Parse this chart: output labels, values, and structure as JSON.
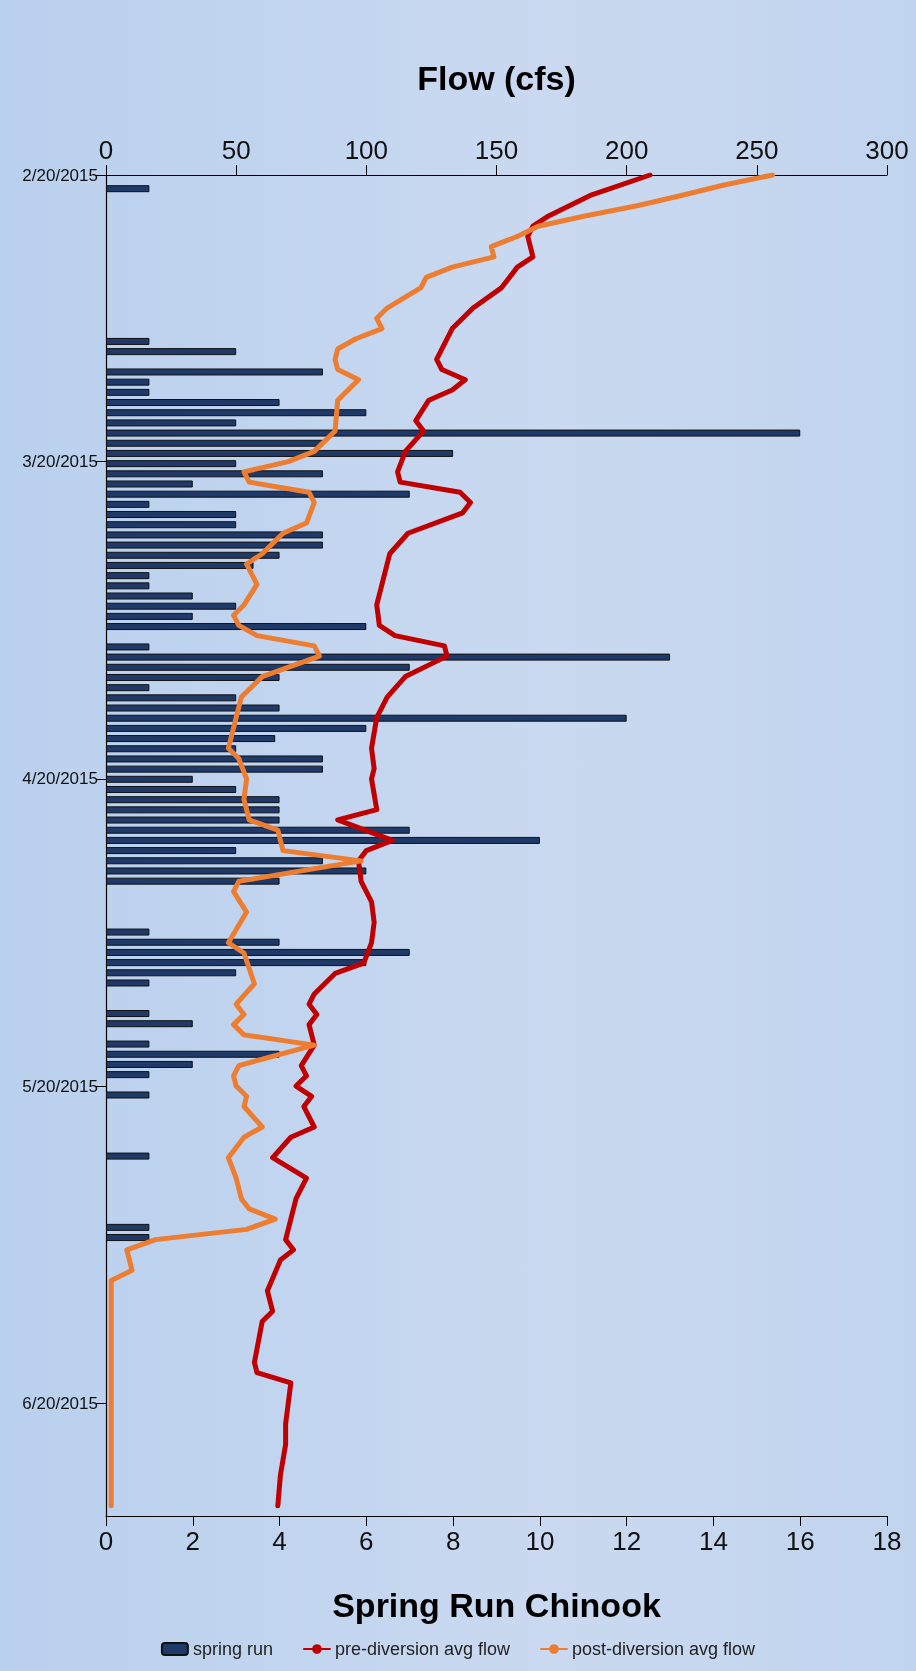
{
  "chart_data": {
    "type": "bar",
    "orientation": "horizontal",
    "xlabel": "Spring Run Chinook",
    "x2label": "Flow (cfs)",
    "xlim": [
      0,
      18
    ],
    "xticks": [
      0,
      2,
      4,
      6,
      8,
      10,
      12,
      14,
      16,
      18
    ],
    "x2lim": [
      0,
      300
    ],
    "x2ticks": [
      0,
      50,
      100,
      150,
      200,
      250,
      300
    ],
    "ylim": [
      "2015-07-01",
      "2015-02-20"
    ],
    "yticks": [
      {
        "value": "2015-02-20",
        "label": "2/20/2015"
      },
      {
        "value": "2015-03-20",
        "label": "3/20/2015"
      },
      {
        "value": "2015-04-20",
        "label": "4/20/2015"
      },
      {
        "value": "2015-05-20",
        "label": "5/20/2015"
      },
      {
        "value": "2015-06-20",
        "label": "6/20/2015"
      }
    ],
    "grid": false,
    "legend": "bottom",
    "marker": "none",
    "series": [
      {
        "name": "spring run",
        "color": "#1f3a68",
        "x": [
          "2015-02-21",
          "2015-03-08",
          "2015-03-09",
          "2015-03-11",
          "2015-03-12",
          "2015-03-13",
          "2015-03-14",
          "2015-03-15",
          "2015-03-16",
          "2015-03-17",
          "2015-03-18",
          "2015-03-19",
          "2015-03-20",
          "2015-03-21",
          "2015-03-22",
          "2015-03-23",
          "2015-03-24",
          "2015-03-25",
          "2015-03-26",
          "2015-03-27",
          "2015-03-28",
          "2015-03-29",
          "2015-03-30",
          "2015-03-31",
          "2015-04-01",
          "2015-04-02",
          "2015-04-03",
          "2015-04-04",
          "2015-04-05",
          "2015-04-07",
          "2015-04-08",
          "2015-04-09",
          "2015-04-10",
          "2015-04-11",
          "2015-04-12",
          "2015-04-13",
          "2015-04-14",
          "2015-04-15",
          "2015-04-16",
          "2015-04-17",
          "2015-04-18",
          "2015-04-19",
          "2015-04-20",
          "2015-04-21",
          "2015-04-22",
          "2015-04-23",
          "2015-04-24",
          "2015-04-25",
          "2015-04-26",
          "2015-04-27",
          "2015-04-28",
          "2015-04-29",
          "2015-04-30",
          "2015-05-05",
          "2015-05-06",
          "2015-05-07",
          "2015-05-08",
          "2015-05-09",
          "2015-05-10",
          "2015-05-13",
          "2015-05-14",
          "2015-05-16",
          "2015-05-17",
          "2015-05-18",
          "2015-05-19",
          "2015-05-21",
          "2015-05-27",
          "2015-06-03",
          "2015-06-04"
        ],
        "values": [
          1,
          1,
          3,
          5,
          1,
          1,
          4,
          6,
          3,
          16,
          5,
          8,
          3,
          5,
          2,
          7,
          1,
          3,
          3,
          5,
          5,
          4,
          3.4,
          1,
          1,
          2,
          3,
          2,
          6,
          1,
          13,
          7,
          4,
          1,
          3,
          4,
          12,
          6,
          3.9,
          3,
          5,
          5,
          2,
          3,
          4,
          4,
          4,
          7,
          10,
          3,
          5,
          6,
          4,
          1,
          4,
          7,
          6,
          3,
          1,
          1,
          2,
          1,
          4,
          2,
          1,
          1,
          1,
          1,
          1
        ]
      },
      {
        "name": "pre-diversion avg flow",
        "type": "line",
        "axis": "x2",
        "color": "#c00000",
        "x": [
          "2015-02-20",
          "2015-02-22",
          "2015-02-24",
          "2015-02-25",
          "2015-02-26",
          "2015-02-28",
          "2015-03-01",
          "2015-03-03",
          "2015-03-05",
          "2015-03-07",
          "2015-03-10",
          "2015-03-11",
          "2015-03-12",
          "2015-03-13",
          "2015-03-14",
          "2015-03-16",
          "2015-03-17",
          "2015-03-19",
          "2015-03-21",
          "2015-03-22",
          "2015-03-23",
          "2015-03-24",
          "2015-03-25",
          "2015-03-27",
          "2015-03-29",
          "2015-04-01",
          "2015-04-03",
          "2015-04-05",
          "2015-04-06",
          "2015-04-07",
          "2015-04-08",
          "2015-04-10",
          "2015-04-12",
          "2015-04-14",
          "2015-04-17",
          "2015-04-19",
          "2015-04-20",
          "2015-04-23",
          "2015-04-24",
          "2015-04-26",
          "2015-04-27",
          "2015-04-28",
          "2015-04-30",
          "2015-05-02",
          "2015-05-04",
          "2015-05-06",
          "2015-05-08",
          "2015-05-09",
          "2015-05-11",
          "2015-05-12",
          "2015-05-13",
          "2015-05-14",
          "2015-05-16",
          "2015-05-18",
          "2015-05-19",
          "2015-05-20",
          "2015-05-21",
          "2015-05-22",
          "2015-05-24",
          "2015-05-25",
          "2015-05-27",
          "2015-05-29",
          "2015-05-31",
          "2015-06-04",
          "2015-06-05",
          "2015-06-06",
          "2015-06-09",
          "2015-06-11",
          "2015-06-12",
          "2015-06-16",
          "2015-06-17",
          "2015-06-18",
          "2015-06-22",
          "2015-06-24",
          "2015-06-27",
          "2015-06-30"
        ],
        "values": [
          209,
          186,
          170,
          164,
          162,
          164,
          158,
          152,
          141,
          133,
          127,
          129,
          138,
          133,
          124,
          119,
          122,
          115,
          112,
          113,
          136,
          140,
          137,
          116,
          109,
          106,
          104,
          105,
          111,
          130,
          131,
          115,
          108,
          104,
          102,
          103,
          102,
          104,
          89,
          110,
          100,
          97,
          98,
          102,
          103,
          102,
          99,
          88,
          80,
          78,
          81,
          78,
          80,
          75,
          77,
          73,
          79,
          76,
          80,
          71,
          64,
          77,
          73,
          69,
          72,
          67,
          62,
          64,
          60,
          57,
          58,
          71,
          69,
          69,
          67,
          66
        ]
      },
      {
        "name": "post-diversion avg flow",
        "type": "line",
        "axis": "x2",
        "color": "#ed7d31",
        "x": [
          "2015-02-20",
          "2015-02-21",
          "2015-02-22",
          "2015-02-23",
          "2015-02-24",
          "2015-02-25",
          "2015-02-26",
          "2015-02-27",
          "2015-02-28",
          "2015-03-01",
          "2015-03-02",
          "2015-03-03",
          "2015-03-05",
          "2015-03-06",
          "2015-03-07",
          "2015-03-08",
          "2015-03-09",
          "2015-03-10",
          "2015-03-11",
          "2015-03-12",
          "2015-03-13",
          "2015-03-14",
          "2015-03-17",
          "2015-03-19",
          "2015-03-20",
          "2015-03-21",
          "2015-03-22",
          "2015-03-23",
          "2015-03-24",
          "2015-03-26",
          "2015-03-27",
          "2015-03-29",
          "2015-03-30",
          "2015-04-01",
          "2015-04-03",
          "2015-04-04",
          "2015-04-05",
          "2015-04-06",
          "2015-04-07",
          "2015-04-08",
          "2015-04-10",
          "2015-04-12",
          "2015-04-14",
          "2015-04-16",
          "2015-04-17",
          "2015-04-18",
          "2015-04-20",
          "2015-04-22",
          "2015-04-24",
          "2015-04-25",
          "2015-04-27",
          "2015-04-28",
          "2015-04-30",
          "2015-05-01",
          "2015-05-03",
          "2015-05-06",
          "2015-05-07",
          "2015-05-10",
          "2015-05-12",
          "2015-05-13",
          "2015-05-14",
          "2015-05-15",
          "2015-05-16",
          "2015-05-18",
          "2015-05-19",
          "2015-05-20",
          "2015-05-21",
          "2015-05-22",
          "2015-05-24",
          "2015-05-25",
          "2015-05-27",
          "2015-05-29",
          "2015-05-31",
          "2015-06-01",
          "2015-06-02",
          "2015-06-03",
          "2015-06-04",
          "2015-06-05",
          "2015-06-07",
          "2015-06-08",
          "2015-06-30"
        ],
        "values": [
          256,
          237,
          221,
          204,
          184,
          166,
          158,
          148,
          149,
          133,
          123,
          121,
          108,
          104,
          106,
          96,
          89,
          88,
          89,
          97,
          93,
          89,
          88,
          80,
          70,
          53,
          55,
          78,
          80,
          77,
          68,
          60,
          54,
          58,
          53,
          49,
          51,
          58,
          80,
          82,
          60,
          52,
          50,
          48,
          47,
          51,
          54,
          53,
          55,
          66,
          68,
          98,
          51,
          49,
          54,
          47,
          53,
          57,
          50,
          53,
          49,
          53,
          80,
          51,
          49,
          50,
          54,
          53,
          60,
          53,
          47,
          50,
          52,
          55,
          65,
          54,
          19,
          8,
          10,
          2,
          2
        ]
      }
    ]
  }
}
